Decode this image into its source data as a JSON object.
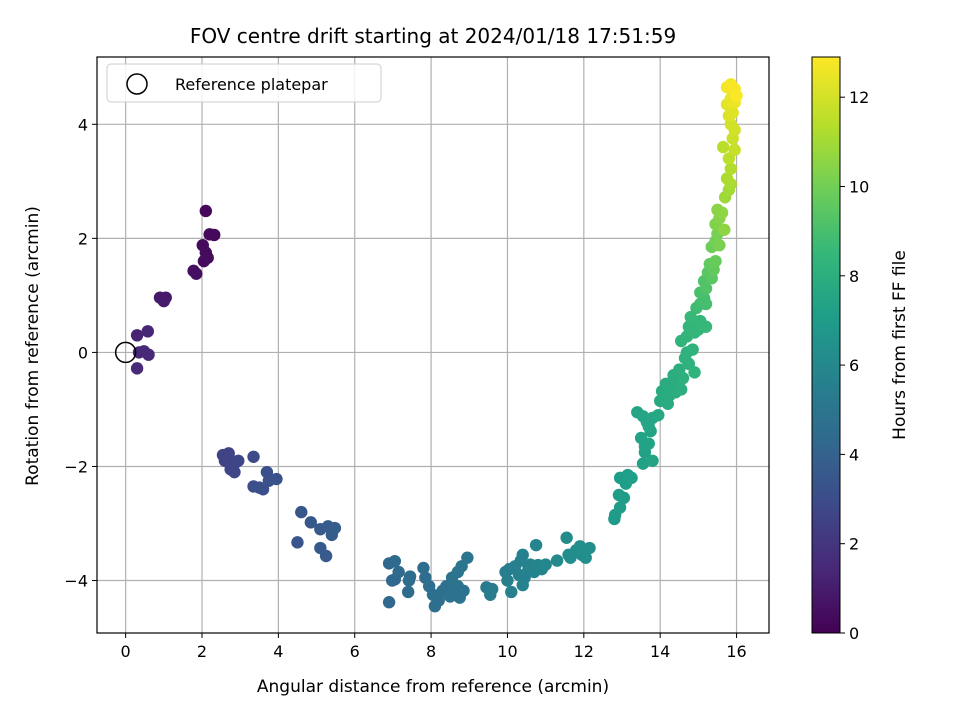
{
  "chart_data": {
    "type": "scatter",
    "title": "FOV centre drift starting at 2024/01/18 17:51:59",
    "xlabel": "Angular distance from reference (arcmin)",
    "ylabel": "Rotation from reference (arcmin)",
    "xlim": [
      -0.75,
      16.85
    ],
    "ylim": [
      -4.92,
      5.18
    ],
    "xticks": [
      0,
      2,
      4,
      6,
      8,
      10,
      12,
      14,
      16
    ],
    "yticks": [
      -4,
      -2,
      0,
      2,
      4
    ],
    "grid": true,
    "legend": {
      "location": "upper-left",
      "entries": [
        "Reference platepar"
      ]
    },
    "reference_point": {
      "x": 0,
      "y": 0
    },
    "colorbar": {
      "label": "Hours from first FF file",
      "range": [
        0,
        12.9
      ],
      "ticks": [
        0,
        2,
        4,
        6,
        8,
        10,
        12
      ],
      "colormap": "viridis"
    },
    "colors": {
      "grid": "#b0b0b0",
      "viridis": [
        "#440154",
        "#482878",
        "#3e4989",
        "#31688e",
        "#26828e",
        "#1f9e89",
        "#35b779",
        "#6ece58",
        "#b5de2b",
        "#fde725"
      ]
    },
    "points": [
      [
        2.1,
        2.48,
        0.25
      ],
      [
        2.2,
        2.07,
        0.3
      ],
      [
        2.32,
        2.06,
        0.3
      ],
      [
        2.02,
        1.88,
        0.32
      ],
      [
        2.1,
        1.75,
        0.35
      ],
      [
        2.05,
        1.6,
        0.35
      ],
      [
        2.15,
        1.66,
        0.37
      ],
      [
        1.78,
        1.43,
        0.5
      ],
      [
        1.85,
        1.38,
        0.5
      ],
      [
        0.9,
        0.96,
        0.9
      ],
      [
        1.05,
        0.96,
        0.9
      ],
      [
        1.0,
        0.9,
        0.95
      ],
      [
        0.3,
        0.3,
        1.3
      ],
      [
        0.58,
        0.37,
        1.35
      ],
      [
        0.35,
        0.0,
        1.4
      ],
      [
        0.48,
        0.02,
        1.42
      ],
      [
        0.6,
        -0.04,
        1.45
      ],
      [
        0.3,
        -0.28,
        1.5
      ],
      [
        2.55,
        -1.8,
        2.6
      ],
      [
        2.7,
        -1.77,
        2.6
      ],
      [
        2.6,
        -1.9,
        2.65
      ],
      [
        2.75,
        -2.05,
        2.7
      ],
      [
        2.85,
        -1.95,
        2.7
      ],
      [
        2.95,
        -1.9,
        2.75
      ],
      [
        2.85,
        -2.1,
        2.75
      ],
      [
        3.35,
        -1.83,
        3.0
      ],
      [
        3.35,
        -2.35,
        3.1
      ],
      [
        3.5,
        -2.37,
        3.15
      ],
      [
        3.6,
        -2.4,
        3.2
      ],
      [
        3.7,
        -2.1,
        3.2
      ],
      [
        3.75,
        -2.25,
        3.25
      ],
      [
        3.95,
        -2.22,
        3.3
      ],
      [
        4.5,
        -3.33,
        3.4
      ],
      [
        4.6,
        -2.8,
        3.45
      ],
      [
        4.85,
        -2.98,
        3.55
      ],
      [
        5.1,
        -3.1,
        3.6
      ],
      [
        5.1,
        -3.43,
        3.65
      ],
      [
        5.25,
        -3.57,
        3.7
      ],
      [
        5.3,
        -3.05,
        3.7
      ],
      [
        5.4,
        -3.2,
        3.75
      ],
      [
        5.48,
        -3.08,
        3.8
      ],
      [
        6.9,
        -4.38,
        4.3
      ],
      [
        6.9,
        -3.7,
        4.3
      ],
      [
        7.05,
        -3.98,
        4.35
      ],
      [
        6.98,
        -4.0,
        4.35
      ],
      [
        7.05,
        -3.66,
        4.4
      ],
      [
        7.15,
        -3.85,
        4.45
      ],
      [
        7.4,
        -4.2,
        4.5
      ],
      [
        7.42,
        -4.0,
        4.55
      ],
      [
        7.45,
        -3.93,
        4.55
      ],
      [
        7.8,
        -3.78,
        4.6
      ],
      [
        7.85,
        -3.95,
        4.6
      ],
      [
        7.95,
        -4.1,
        4.65
      ],
      [
        8.05,
        -4.25,
        4.7
      ],
      [
        8.1,
        -4.45,
        4.7
      ],
      [
        8.2,
        -4.35,
        4.75
      ],
      [
        8.3,
        -4.18,
        4.8
      ],
      [
        8.4,
        -4.1,
        4.8
      ],
      [
        8.5,
        -4.28,
        4.85
      ],
      [
        8.6,
        -4.22,
        4.85
      ],
      [
        8.7,
        -4.1,
        4.9
      ],
      [
        8.75,
        -4.3,
        4.9
      ],
      [
        8.85,
        -4.18,
        4.95
      ],
      [
        8.55,
        -3.95,
        4.95
      ],
      [
        8.7,
        -3.85,
        5.0
      ],
      [
        8.8,
        -3.75,
        5.0
      ],
      [
        8.95,
        -3.6,
        5.05
      ],
      [
        9.45,
        -4.12,
        5.3
      ],
      [
        9.55,
        -4.25,
        5.35
      ],
      [
        9.6,
        -4.15,
        5.35
      ],
      [
        9.95,
        -3.85,
        5.5
      ],
      [
        10.05,
        -3.8,
        5.55
      ],
      [
        10.0,
        -4.0,
        5.55
      ],
      [
        10.1,
        -4.2,
        5.6
      ],
      [
        10.2,
        -3.75,
        5.6
      ],
      [
        10.3,
        -3.9,
        5.65
      ],
      [
        10.35,
        -3.65,
        5.65
      ],
      [
        10.4,
        -3.55,
        5.7
      ],
      [
        10.45,
        -3.95,
        5.7
      ],
      [
        10.4,
        -4.08,
        5.75
      ],
      [
        10.55,
        -3.8,
        5.75
      ],
      [
        10.6,
        -3.72,
        5.8
      ],
      [
        10.7,
        -3.85,
        5.8
      ],
      [
        10.75,
        -3.38,
        5.85
      ],
      [
        10.8,
        -3.73,
        5.85
      ],
      [
        10.9,
        -3.8,
        5.9
      ],
      [
        11.0,
        -3.72,
        5.95
      ],
      [
        11.3,
        -3.65,
        6.1
      ],
      [
        11.55,
        -3.25,
        6.2
      ],
      [
        11.6,
        -3.55,
        6.25
      ],
      [
        11.65,
        -3.6,
        6.25
      ],
      [
        11.8,
        -3.47,
        6.3
      ],
      [
        11.9,
        -3.4,
        6.35
      ],
      [
        11.95,
        -3.55,
        6.35
      ],
      [
        12.05,
        -3.6,
        6.4
      ],
      [
        12.15,
        -3.43,
        6.4
      ],
      [
        12.8,
        -2.92,
        7.0
      ],
      [
        12.82,
        -2.85,
        7.0
      ],
      [
        12.95,
        -2.72,
        7.05
      ],
      [
        12.92,
        -2.5,
        7.05
      ],
      [
        13.05,
        -2.55,
        7.1
      ],
      [
        12.95,
        -2.2,
        7.1
      ],
      [
        13.1,
        -2.3,
        7.15
      ],
      [
        13.15,
        -2.15,
        7.15
      ],
      [
        13.25,
        -2.2,
        7.2
      ],
      [
        13.55,
        -1.95,
        7.35
      ],
      [
        13.6,
        -1.75,
        7.35
      ],
      [
        13.5,
        -1.5,
        7.4
      ],
      [
        13.6,
        -1.65,
        7.4
      ],
      [
        13.7,
        -1.6,
        7.45
      ],
      [
        13.75,
        -1.38,
        7.45
      ],
      [
        13.8,
        -1.9,
        7.5
      ],
      [
        13.4,
        -1.05,
        7.5
      ],
      [
        13.55,
        -1.12,
        7.55
      ],
      [
        13.65,
        -1.22,
        7.55
      ],
      [
        13.7,
        -1.3,
        7.6
      ],
      [
        13.8,
        -1.15,
        7.65
      ],
      [
        13.95,
        -1.1,
        7.7
      ],
      [
        14.0,
        -0.85,
        7.8
      ],
      [
        14.05,
        -0.68,
        7.85
      ],
      [
        14.1,
        -0.8,
        7.85
      ],
      [
        14.15,
        -0.55,
        7.9
      ],
      [
        14.2,
        -0.9,
        7.9
      ],
      [
        14.25,
        -0.75,
        7.95
      ],
      [
        14.3,
        -0.6,
        7.95
      ],
      [
        14.35,
        -0.4,
        8.0
      ],
      [
        14.4,
        -0.7,
        8.0
      ],
      [
        14.45,
        -0.5,
        8.05
      ],
      [
        14.5,
        -0.3,
        8.1
      ],
      [
        14.55,
        -0.65,
        8.1
      ],
      [
        14.6,
        -0.45,
        8.15
      ],
      [
        14.65,
        -0.1,
        8.2
      ],
      [
        14.7,
        0.0,
        8.25
      ],
      [
        14.75,
        -0.2,
        8.25
      ],
      [
        14.85,
        0.05,
        8.3
      ],
      [
        14.9,
        -0.35,
        8.35
      ],
      [
        14.55,
        0.2,
        8.35
      ],
      [
        14.7,
        0.28,
        8.4
      ],
      [
        14.75,
        0.45,
        8.45
      ],
      [
        14.85,
        0.5,
        8.5
      ],
      [
        14.9,
        0.35,
        8.5
      ],
      [
        15.0,
        0.4,
        8.55
      ],
      [
        15.05,
        0.55,
        8.6
      ],
      [
        15.1,
        0.48,
        8.6
      ],
      [
        15.2,
        0.45,
        8.65
      ],
      [
        14.8,
        0.62,
        8.65
      ],
      [
        14.95,
        0.78,
        8.8
      ],
      [
        15.05,
        0.85,
        8.9
      ],
      [
        15.15,
        0.95,
        9.0
      ],
      [
        15.2,
        0.85,
        9.05
      ],
      [
        15.05,
        1.05,
        9.1
      ],
      [
        15.15,
        1.25,
        9.3
      ],
      [
        15.2,
        1.12,
        9.35
      ],
      [
        15.25,
        1.4,
        9.5
      ],
      [
        15.35,
        1.3,
        9.55
      ],
      [
        15.3,
        1.55,
        9.7
      ],
      [
        15.4,
        1.45,
        9.75
      ],
      [
        15.45,
        1.6,
        9.85
      ],
      [
        15.35,
        1.85,
        10.0
      ],
      [
        15.45,
        1.95,
        10.1
      ],
      [
        15.5,
        2.08,
        10.2
      ],
      [
        15.55,
        1.88,
        10.25
      ],
      [
        15.45,
        2.25,
        10.4
      ],
      [
        15.55,
        2.35,
        10.5
      ],
      [
        15.5,
        2.5,
        10.6
      ],
      [
        15.62,
        2.45,
        10.65
      ],
      [
        15.68,
        2.15,
        10.7
      ],
      [
        15.7,
        2.72,
        11.0
      ],
      [
        15.8,
        2.85,
        11.1
      ],
      [
        15.85,
        2.95,
        11.2
      ],
      [
        15.75,
        3.05,
        11.3
      ],
      [
        15.85,
        3.22,
        11.4
      ],
      [
        15.65,
        3.6,
        11.55
      ],
      [
        15.8,
        3.4,
        11.6
      ],
      [
        15.95,
        3.55,
        11.8
      ],
      [
        15.9,
        3.75,
        11.9
      ],
      [
        15.85,
        4.0,
        12.0
      ],
      [
        15.95,
        3.9,
        12.05
      ],
      [
        15.8,
        4.15,
        12.2
      ],
      [
        15.9,
        4.2,
        12.3
      ],
      [
        15.75,
        4.35,
        12.4
      ],
      [
        15.85,
        4.45,
        12.5
      ],
      [
        15.95,
        4.38,
        12.55
      ],
      [
        15.75,
        4.65,
        12.7
      ],
      [
        15.85,
        4.7,
        12.75
      ],
      [
        15.95,
        4.62,
        12.8
      ],
      [
        16.0,
        4.5,
        12.85
      ]
    ]
  }
}
